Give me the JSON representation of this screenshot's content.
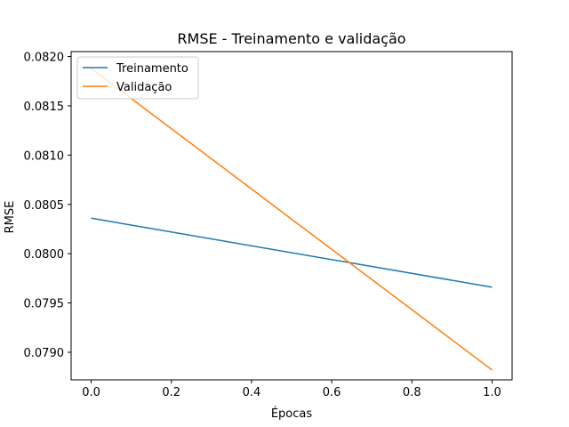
{
  "chart_data": {
    "type": "line",
    "title": "RMSE - Treinamento e validação",
    "xlabel": "Épocas",
    "ylabel": "RMSE",
    "x": [
      0.0,
      1.0
    ],
    "xlim": [
      -0.05,
      1.05
    ],
    "ylim": [
      0.07872,
      0.08205
    ],
    "xticks": [
      0.0,
      0.2,
      0.4,
      0.6,
      0.8,
      1.0
    ],
    "xtick_labels": [
      "0.0",
      "0.2",
      "0.4",
      "0.6",
      "0.8",
      "1.0"
    ],
    "yticks": [
      0.079,
      0.0795,
      0.08,
      0.0805,
      0.081,
      0.0815,
      0.082
    ],
    "ytick_labels": [
      "0.0790",
      "0.0795",
      "0.0800",
      "0.0805",
      "0.0810",
      "0.0815",
      "0.0820"
    ],
    "grid": false,
    "legend_position": "top-left",
    "series": [
      {
        "name": "Treinamento",
        "values": [
          0.08036,
          0.07966
        ],
        "color": "#1f77b4"
      },
      {
        "name": "Validação",
        "values": [
          0.08188,
          0.07882
        ],
        "color": "#ff7f0e"
      }
    ]
  }
}
